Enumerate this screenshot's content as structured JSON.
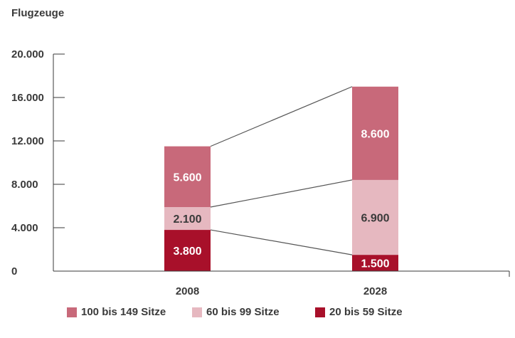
{
  "chart_data": {
    "type": "bar",
    "stacked": true,
    "ylabel": "Flugzeuge",
    "categories": [
      "2008",
      "2028"
    ],
    "ylim": [
      0,
      20000
    ],
    "yticks": [
      0,
      4000,
      8000,
      12000,
      16000,
      20000
    ],
    "ytick_labels": [
      "0",
      "4.000",
      "8.000",
      "12.000",
      "16.000",
      "20.000"
    ],
    "series": [
      {
        "name": "20 bis 59 Sitze",
        "values": [
          3800,
          1500
        ],
        "labels": [
          "3.800",
          "1.500"
        ],
        "color": "#a8102a",
        "label_color": "#ffffff"
      },
      {
        "name": "60 bis 99 Sitze",
        "values": [
          2100,
          6900
        ],
        "labels": [
          "2.100",
          "6.900"
        ],
        "color": "#e6b8c0",
        "label_color": "#3a3a3a"
      },
      {
        "name": "100 bis 149 Sitze",
        "values": [
          5600,
          8600
        ],
        "labels": [
          "5.600",
          "8.600"
        ],
        "color": "#c8697a",
        "label_color": "#ffffff"
      }
    ],
    "legend_order": [
      2,
      1,
      0
    ],
    "legend_position": "bottom"
  }
}
